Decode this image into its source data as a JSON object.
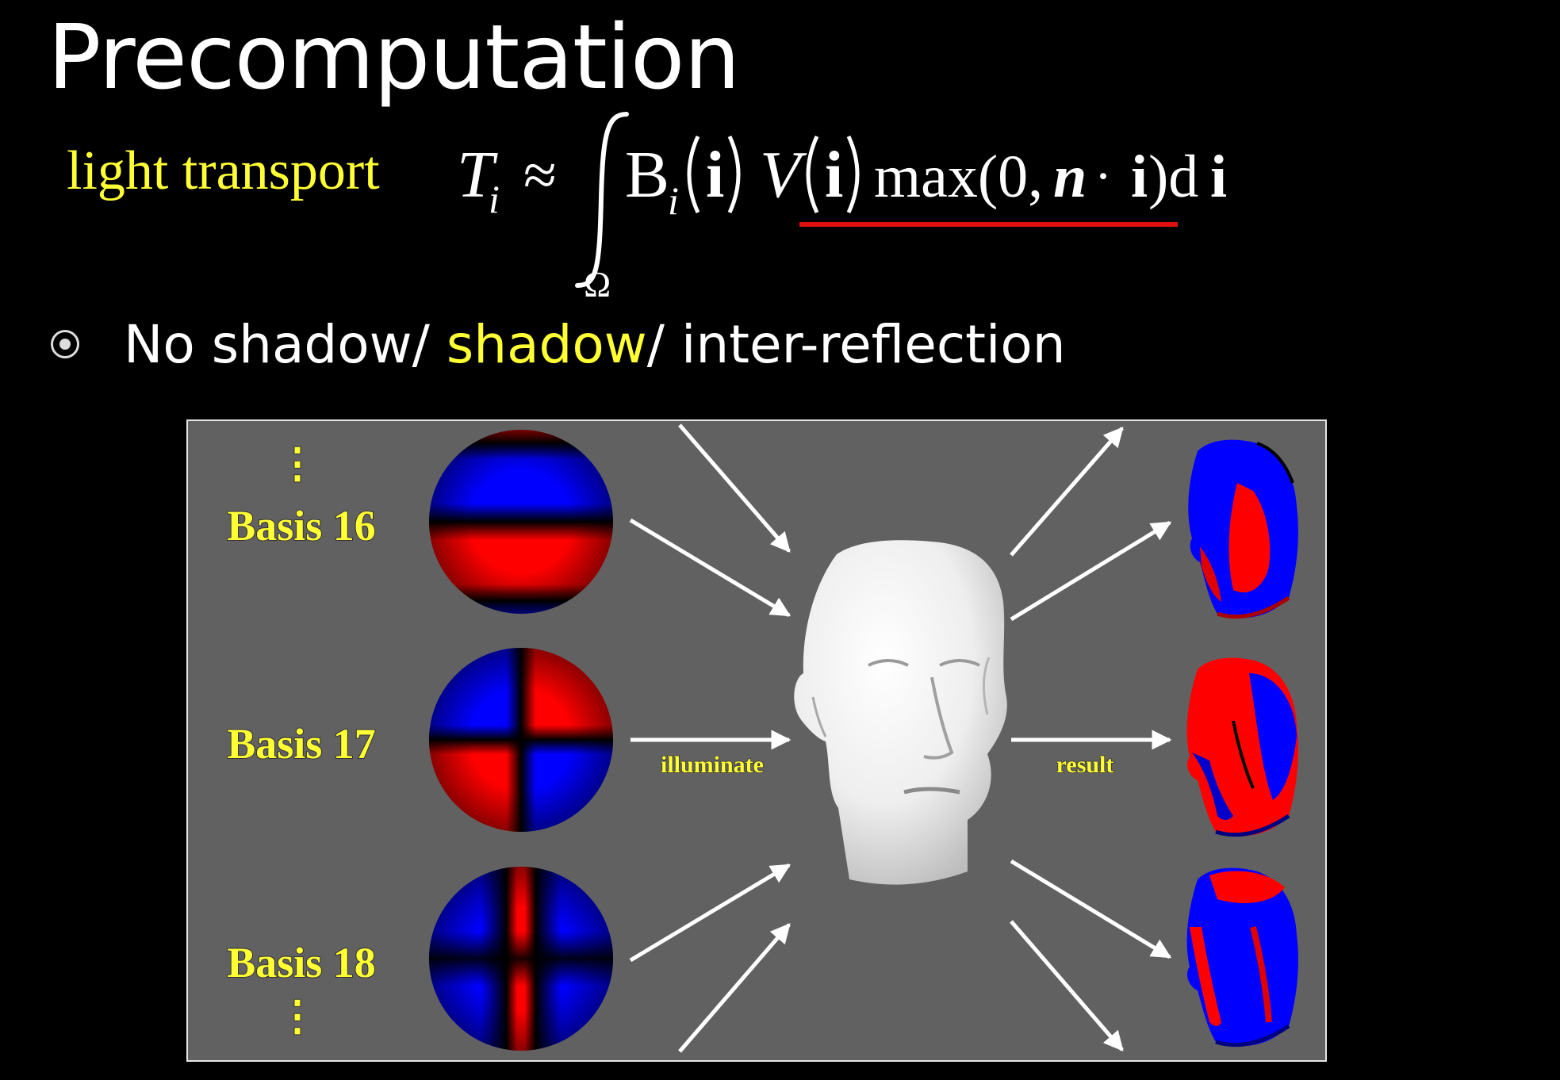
{
  "slide": {
    "title": "Precomputation",
    "equation_label": "light transport",
    "equation": {
      "lhs": "T",
      "lhs_sub": "i",
      "approx": "≈",
      "basis_symbol": "B",
      "basis_sub": "i",
      "vec": "i",
      "visibility": "V",
      "max_expr": "max(0,",
      "normal": "n",
      "dot": "·",
      "close": ")d",
      "domain": "Ω"
    },
    "bullet": {
      "part1": "No shadow/ ",
      "highlight": "shadow",
      "part2": "/ inter-reflection"
    }
  },
  "figure": {
    "bases": [
      {
        "label": "Basis 16",
        "pattern": "horizontal-band"
      },
      {
        "label": "Basis 17",
        "pattern": "quadrants"
      },
      {
        "label": "Basis 18",
        "pattern": "vertical-band"
      }
    ],
    "ellipsis": "⋮",
    "illuminate_label": "illuminate",
    "result_label": "result"
  },
  "colors": {
    "background": "#000000",
    "panel": "#616161",
    "accent": "#ffff33",
    "underline": "#e01010",
    "positive": "#ff0000",
    "negative": "#0000ff"
  }
}
